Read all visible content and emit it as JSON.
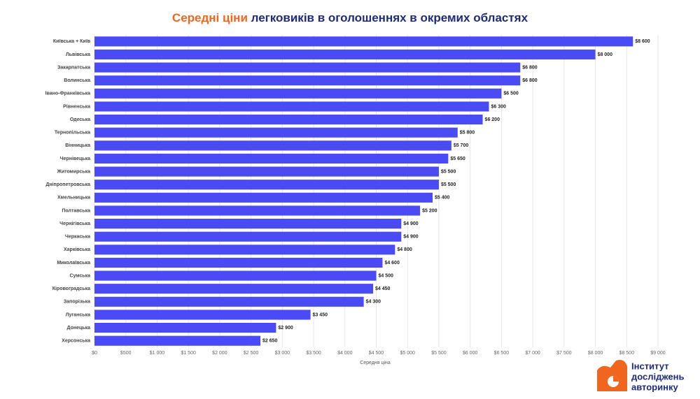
{
  "chart_data": {
    "type": "barh",
    "title_parts": [
      "Середні ціни",
      "легковиків в оголошеннях в окремих областях"
    ],
    "categories": [
      "Київська + Київ",
      "Львівська",
      "Закарпатська",
      "Волинська",
      "Івано-Франківська",
      "Рівненська",
      "Одеська",
      "Тернопільська",
      "Вінницька",
      "Чернівецька",
      "Житомирська",
      "Дніпропетровська",
      "Хмельницька",
      "Полтавська",
      "Чернігівська",
      "Черкаська",
      "Харківська",
      "Миколаївська",
      "Сумська",
      "Кіровоградська",
      "Запорізька",
      "Луганська",
      "Донецька",
      "Херсонська"
    ],
    "values": [
      8600,
      8000,
      6800,
      6800,
      6500,
      6300,
      6200,
      5800,
      5700,
      5650,
      5500,
      5500,
      5400,
      5200,
      4900,
      4900,
      4800,
      4600,
      4500,
      4450,
      4300,
      3450,
      2900,
      2650
    ],
    "value_labels": [
      "$8 600",
      "$8 000",
      "$6 800",
      "$6 800",
      "$6 500",
      "$6 300",
      "$6 200",
      "$5 800",
      "$5 700",
      "$5 650",
      "$5 500",
      "$5 500",
      "$5 400",
      "$5 200",
      "$4 900",
      "$4 900",
      "$4 800",
      "$4 600",
      "$4 500",
      "$4 450",
      "$4 300",
      "$3 450",
      "$2 900",
      "$2 650"
    ],
    "color": "#4b4bf5",
    "xlabel": "Середня ціна",
    "xlim": [
      0,
      9000
    ],
    "xticks": [
      {
        "value": 0,
        "label": "$0"
      },
      {
        "value": 500,
        "label": "$500"
      },
      {
        "value": 1000,
        "label": "$1 000"
      },
      {
        "value": 1500,
        "label": "$1 500"
      },
      {
        "value": 2000,
        "label": "$2 000"
      },
      {
        "value": 2500,
        "label": "$2 500"
      },
      {
        "value": 3000,
        "label": "$3 000"
      },
      {
        "value": 3500,
        "label": "$3 500"
      },
      {
        "value": 4000,
        "label": "$4 000"
      },
      {
        "value": 4500,
        "label": "$4 500"
      },
      {
        "value": 5000,
        "label": "$5 000"
      },
      {
        "value": 5500,
        "label": "$5 500"
      },
      {
        "value": 6000,
        "label": "$6 000"
      },
      {
        "value": 6500,
        "label": "$6 500"
      },
      {
        "value": 7000,
        "label": "$7 000"
      },
      {
        "value": 7500,
        "label": "$7 500"
      },
      {
        "value": 8000,
        "label": "$8 000"
      },
      {
        "value": 8500,
        "label": "$8 500"
      },
      {
        "value": 9000,
        "label": "$9 000"
      }
    ],
    "grid": true
  },
  "logo": [
    "Інститут",
    "досліджень",
    "авторинку"
  ]
}
